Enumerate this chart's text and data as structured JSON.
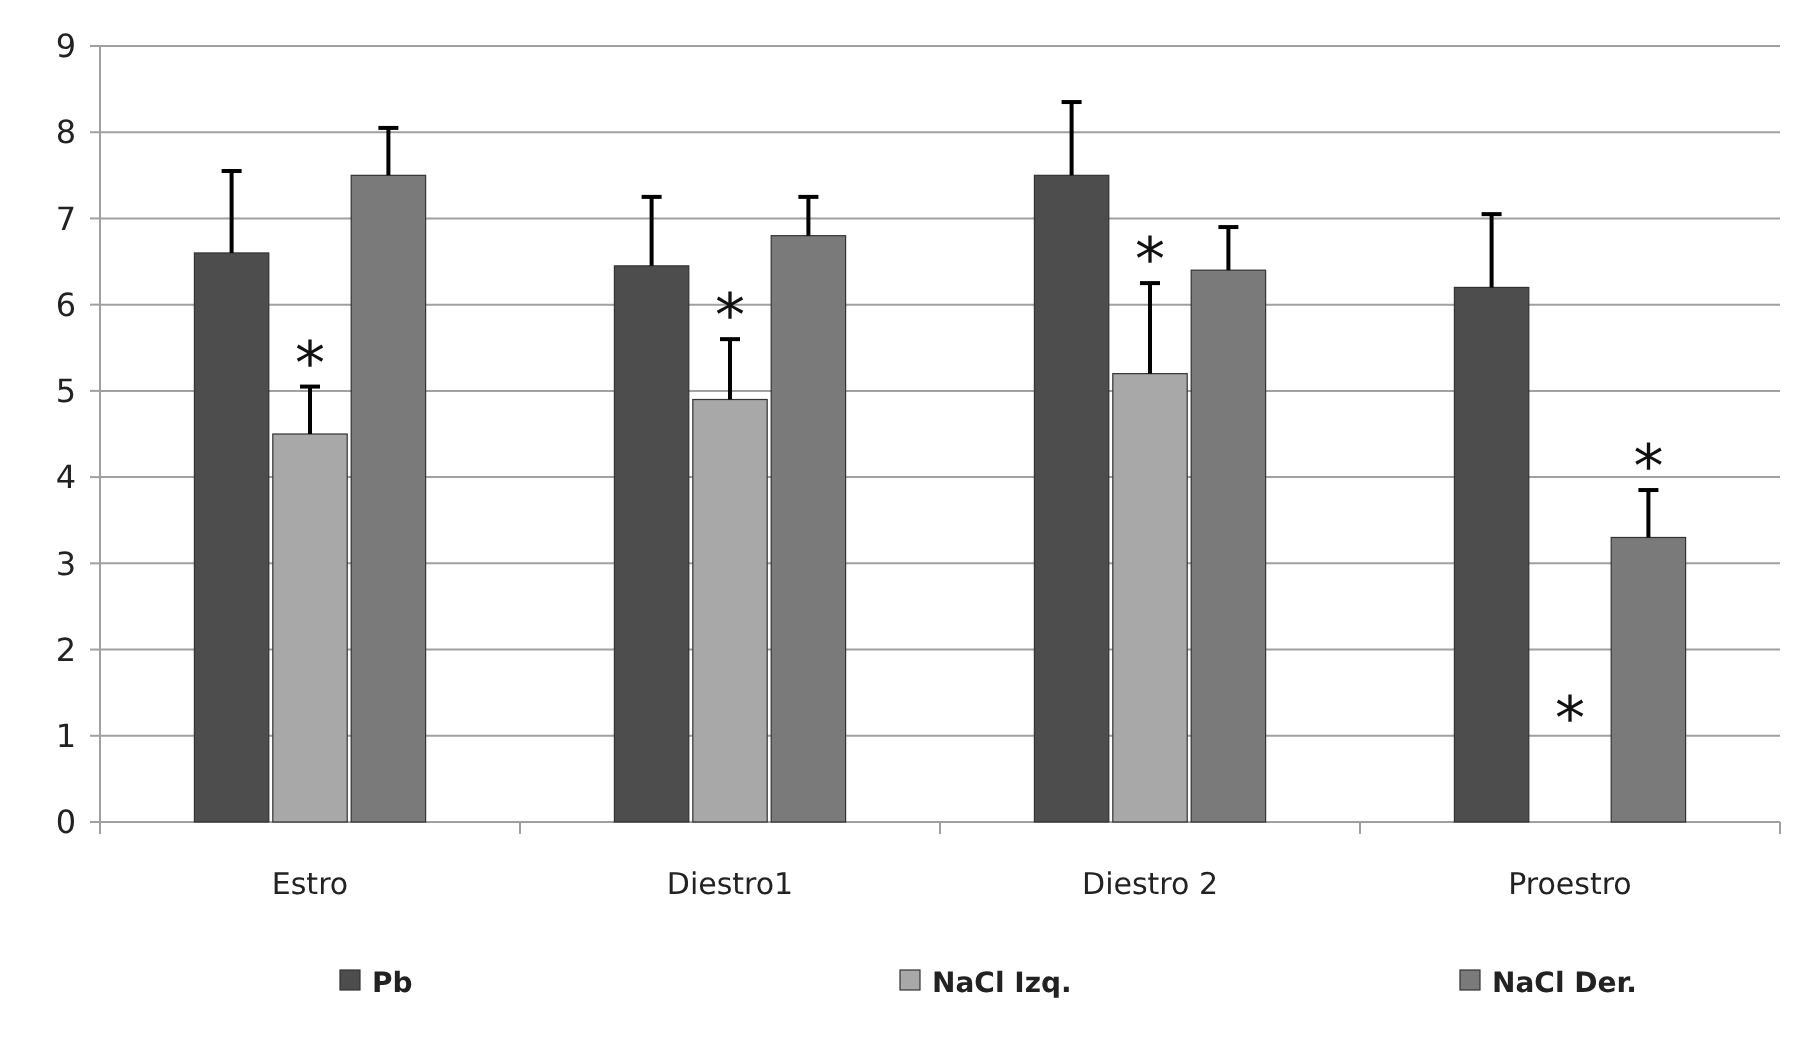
{
  "chart_data": {
    "type": "bar",
    "categories": [
      "Estro",
      "Diestro1",
      "Diestro 2",
      "Proestro"
    ],
    "series": [
      {
        "name": "Pb",
        "color": "#4d4d4d",
        "values": [
          6.6,
          6.45,
          7.5,
          6.2
        ],
        "errors": [
          [
            6.6,
            7.55
          ],
          [
            6.45,
            7.25
          ],
          [
            7.5,
            8.35
          ],
          [
            6.2,
            7.05
          ]
        ]
      },
      {
        "name": "NaCl Izq.",
        "color": "#a8a8a8",
        "values": [
          4.5,
          4.9,
          5.2,
          null
        ],
        "errors": [
          [
            4.5,
            5.05
          ],
          [
            4.9,
            5.6
          ],
          [
            5.2,
            6.25
          ],
          null
        ],
        "value_labels": [
          "*",
          "*",
          "*",
          "*"
        ]
      },
      {
        "name": "NaCl Der.",
        "color": "#7a7a7a",
        "values": [
          7.5,
          6.8,
          6.4,
          3.3
        ],
        "errors": [
          [
            7.5,
            8.05
          ],
          [
            6.8,
            7.25
          ],
          [
            6.4,
            6.9
          ],
          [
            3.3,
            3.85
          ]
        ],
        "value_labels": [
          null,
          null,
          null,
          "*"
        ]
      }
    ],
    "ylim": [
      0,
      9
    ],
    "yticks": [
      0,
      1,
      2,
      3,
      4,
      5,
      6,
      7,
      8,
      9
    ],
    "grid": "y",
    "legend": "bottom"
  }
}
